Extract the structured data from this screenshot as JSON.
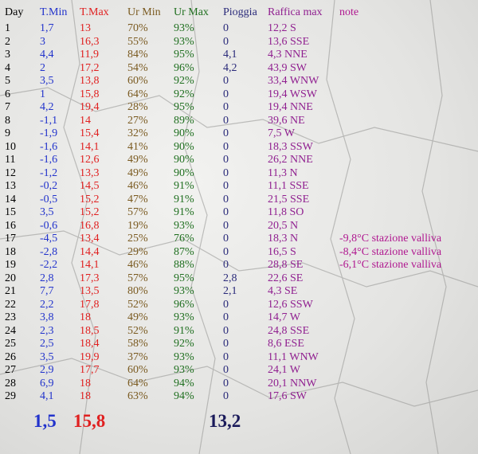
{
  "table": {
    "header": [
      "Day",
      "T.Min",
      "T.Max",
      "Ur Min",
      "Ur Max",
      "Pioggia",
      "Raffica max",
      "note"
    ],
    "rows": [
      [
        "1",
        "1,7",
        "13",
        "70%",
        "93%",
        "0",
        "12,2 S"
      ],
      [
        "2",
        "3",
        "16,3",
        "55%",
        "93%",
        "0",
        "13,6 SSE"
      ],
      [
        "3",
        "4,4",
        "11,9",
        "84%",
        "95%",
        "4,1",
        "4,3 NNE"
      ],
      [
        "4",
        "2",
        "17,2",
        "54%",
        "96%",
        "4,2",
        "43,9 SW"
      ],
      [
        "5",
        "3,5",
        "13,8",
        "60%",
        "92%",
        "0",
        "33,4 WNW"
      ],
      [
        "6",
        "1",
        "15,8",
        "64%",
        "92%",
        "0",
        "19,4 WSW"
      ],
      [
        "7",
        "4,2",
        "19,4",
        "28%",
        "95%",
        "0",
        "19,4 NNE"
      ],
      [
        "8",
        "-1,1",
        "14",
        "27%",
        "89%",
        "0",
        "39,6 NE"
      ],
      [
        "9",
        "-1,9",
        "15,4",
        "32%",
        "90%",
        "0",
        "7,5 W"
      ],
      [
        "10",
        "-1,6",
        "14,1",
        "41%",
        "90%",
        "0",
        "18,3 SSW"
      ],
      [
        "11",
        "-1,6",
        "12,6",
        "49%",
        "90%",
        "0",
        "26,2 NNE"
      ],
      [
        "12",
        "-1,2",
        "13,3",
        "49%",
        "90%",
        "0",
        "11,3 N"
      ],
      [
        "13",
        "-0,2",
        "14,5",
        "46%",
        "91%",
        "0",
        "11,1 SSE"
      ],
      [
        "14",
        "-0,5",
        "15,2",
        "47%",
        "91%",
        "0",
        "21,5 SSE"
      ],
      [
        "15",
        "3,5",
        "15,2",
        "57%",
        "91%",
        "0",
        "11,8 SO"
      ],
      [
        "16",
        "-0,6",
        "16,8",
        "19%",
        "93%",
        "0",
        "20,5 N"
      ],
      [
        "17",
        "-4,5",
        "13,4",
        "25%",
        "76%",
        "0",
        "18,3 N",
        "-9,8°C stazione valliva"
      ],
      [
        "18",
        "-2,8",
        "14,4",
        "29%",
        "87%",
        "0",
        "16,5 S",
        "-8,4°C stazione valliva"
      ],
      [
        "19",
        "-2,2",
        "14,1",
        "46%",
        "88%",
        "0",
        "28,8 SE",
        "-6,1°C stazione valliva"
      ],
      [
        "20",
        "2,8",
        "17,3",
        "57%",
        "95%",
        "2,8",
        "22,6 SE"
      ],
      [
        "21",
        "7,7",
        "13,5",
        "80%",
        "93%",
        "2,1",
        "4,3 SE"
      ],
      [
        "22",
        "2,2",
        "17,8",
        "52%",
        "96%",
        "0",
        "12,6 SSW"
      ],
      [
        "23",
        "3,8",
        "18",
        "49%",
        "93%",
        "0",
        "14,7 W"
      ],
      [
        "24",
        "2,3",
        "18,5",
        "52%",
        "91%",
        "0",
        "24,8 SSE"
      ],
      [
        "25",
        "2,5",
        "18,4",
        "58%",
        "92%",
        "0",
        "8,6 ESE"
      ],
      [
        "26",
        "3,5",
        "19,9",
        "37%",
        "93%",
        "0",
        "11,1 WNW"
      ],
      [
        "27",
        "2,9",
        "17,7",
        "60%",
        "93%",
        "0",
        "24,1 W"
      ],
      [
        "28",
        "6,9",
        "18",
        "64%",
        "94%",
        "0",
        "20,1 NNW"
      ],
      [
        "29",
        "4,1",
        "18",
        "63%",
        "94%",
        "0",
        "17,6 SW"
      ]
    ],
    "totals": {
      "tmin": "1,5",
      "tmax": "15,8",
      "pioggia": "13,2"
    }
  }
}
